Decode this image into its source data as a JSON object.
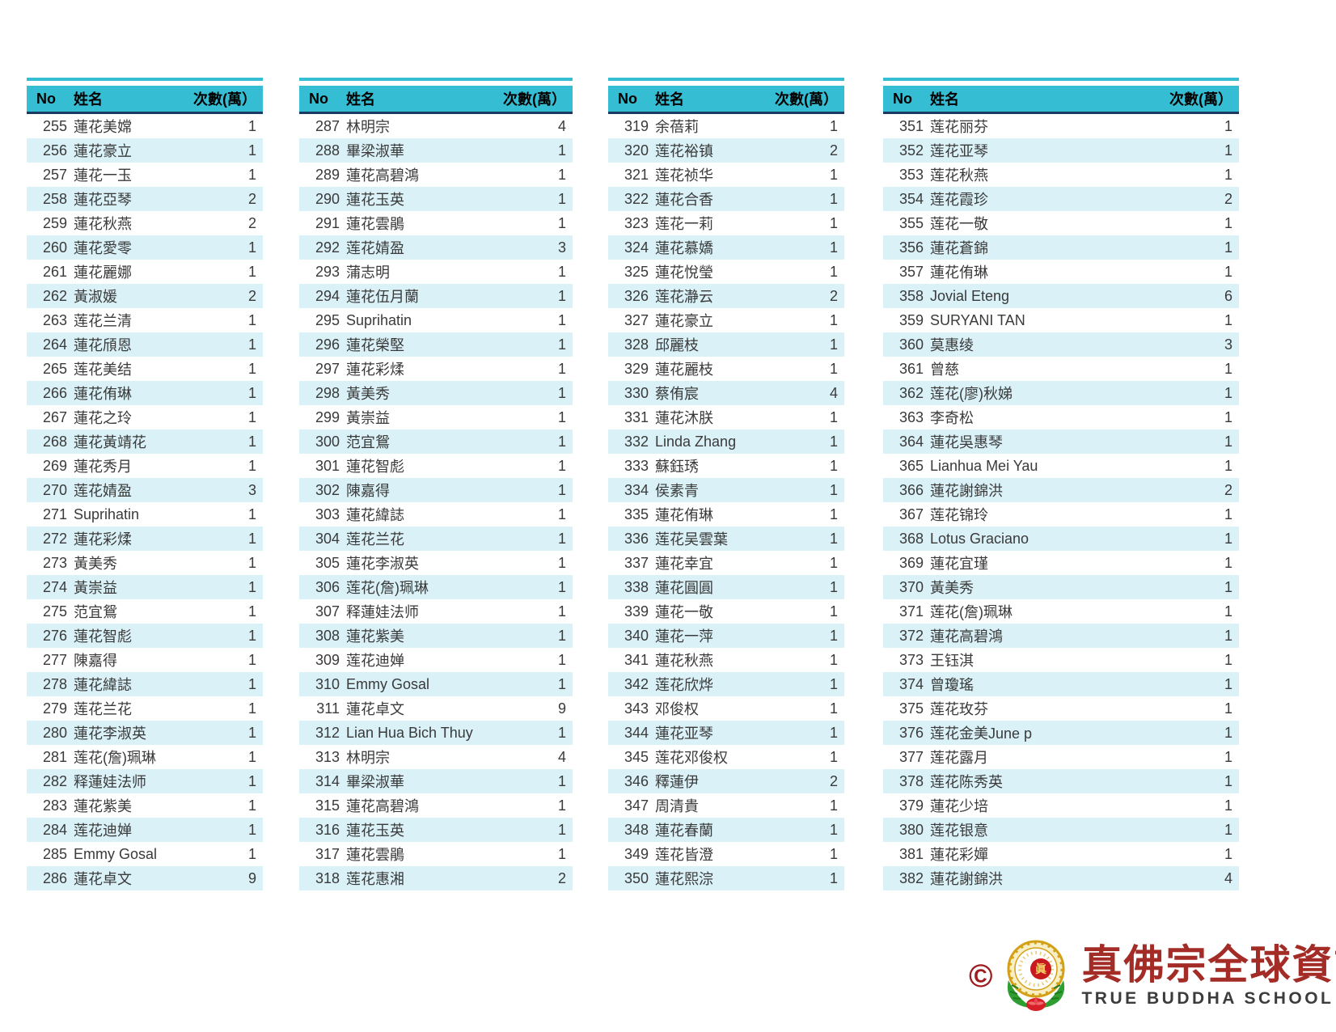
{
  "table_header": {
    "no": "No",
    "name": "姓名",
    "count": "次數(萬）"
  },
  "colors": {
    "header_bg": "#35bed3",
    "header_border": "#1b3a63",
    "row_alt": "#d9f1f7",
    "logo_red": "#a32c26"
  },
  "tables": [
    {
      "rows": [
        {
          "no": 255,
          "name": "蓮花美嫦",
          "count": 1
        },
        {
          "no": 256,
          "name": "蓮花豪立",
          "count": 1
        },
        {
          "no": 257,
          "name": "蓮花一玉",
          "count": 1
        },
        {
          "no": 258,
          "name": "蓮花亞琴",
          "count": 2
        },
        {
          "no": 259,
          "name": "蓮花秋燕",
          "count": 2
        },
        {
          "no": 260,
          "name": "蓮花愛零",
          "count": 1
        },
        {
          "no": 261,
          "name": "蓮花麗娜",
          "count": 1
        },
        {
          "no": 262,
          "name": "黃淑媛",
          "count": 2
        },
        {
          "no": 263,
          "name": "莲花兰清",
          "count": 1
        },
        {
          "no": 264,
          "name": "蓮花頎恩",
          "count": 1
        },
        {
          "no": 265,
          "name": "莲花美结",
          "count": 1
        },
        {
          "no": 266,
          "name": "蓮花侑琳",
          "count": 1
        },
        {
          "no": 267,
          "name": "蓮花之玲",
          "count": 1
        },
        {
          "no": 268,
          "name": "蓮花黃靖花",
          "count": 1
        },
        {
          "no": 269,
          "name": "蓮花秀月",
          "count": 1
        },
        {
          "no": 270,
          "name": "莲花婧盈",
          "count": 3
        },
        {
          "no": 271,
          "name": "Suprihatin",
          "count": 1
        },
        {
          "no": 272,
          "name": "蓮花彩煣",
          "count": 1
        },
        {
          "no": 273,
          "name": "黃美秀",
          "count": 1
        },
        {
          "no": 274,
          "name": "黃崇益",
          "count": 1
        },
        {
          "no": 275,
          "name": "范宜鴛",
          "count": 1
        },
        {
          "no": 276,
          "name": "蓮花智彪",
          "count": 1
        },
        {
          "no": 277,
          "name": "陳嘉得",
          "count": 1
        },
        {
          "no": 278,
          "name": "蓮花緯誌",
          "count": 1
        },
        {
          "no": 279,
          "name": "莲花兰花",
          "count": 1
        },
        {
          "no": 280,
          "name": "蓮花李淑英",
          "count": 1
        },
        {
          "no": 281,
          "name": "莲花(詹)珮琳",
          "count": 1
        },
        {
          "no": 282,
          "name": "释蓮娃法师",
          "count": 1
        },
        {
          "no": 283,
          "name": "蓮花紫美",
          "count": 1
        },
        {
          "no": 284,
          "name": "莲花迪婵",
          "count": 1
        },
        {
          "no": 285,
          "name": "Emmy Gosal",
          "count": 1
        },
        {
          "no": 286,
          "name": "蓮花卓文",
          "count": 9
        }
      ]
    },
    {
      "rows": [
        {
          "no": 287,
          "name": "林明宗",
          "count": 4
        },
        {
          "no": 288,
          "name": "畢梁淑華",
          "count": 1
        },
        {
          "no": 289,
          "name": "蓮花高碧鴻",
          "count": 1
        },
        {
          "no": 290,
          "name": "蓮花玉英",
          "count": 1
        },
        {
          "no": 291,
          "name": "蓮花雲鵑",
          "count": 1
        },
        {
          "no": 292,
          "name": "莲花婧盈",
          "count": 3
        },
        {
          "no": 293,
          "name": "蒲志明",
          "count": 1
        },
        {
          "no": 294,
          "name": "蓮花伍月蘭",
          "count": 1
        },
        {
          "no": 295,
          "name": "Suprihatin",
          "count": 1
        },
        {
          "no": 296,
          "name": "蓮花榮堅",
          "count": 1
        },
        {
          "no": 297,
          "name": "蓮花彩煣",
          "count": 1
        },
        {
          "no": 298,
          "name": "黃美秀",
          "count": 1
        },
        {
          "no": 299,
          "name": "黃崇益",
          "count": 1
        },
        {
          "no": 300,
          "name": "范宜鴛",
          "count": 1
        },
        {
          "no": 301,
          "name": "蓮花智彪",
          "count": 1
        },
        {
          "no": 302,
          "name": "陳嘉得",
          "count": 1
        },
        {
          "no": 303,
          "name": "蓮花緯誌",
          "count": 1
        },
        {
          "no": 304,
          "name": "莲花兰花",
          "count": 1
        },
        {
          "no": 305,
          "name": "蓮花李淑英",
          "count": 1
        },
        {
          "no": 306,
          "name": "莲花(詹)珮琳",
          "count": 1
        },
        {
          "no": 307,
          "name": "释蓮娃法师",
          "count": 1
        },
        {
          "no": 308,
          "name": "蓮花紫美",
          "count": 1
        },
        {
          "no": 309,
          "name": "莲花迪婵",
          "count": 1
        },
        {
          "no": 310,
          "name": "Emmy Gosal",
          "count": 1
        },
        {
          "no": 311,
          "name": "蓮花卓文",
          "count": 9
        },
        {
          "no": 312,
          "name": "Lian Hua Bich Thuy",
          "count": 1
        },
        {
          "no": 313,
          "name": "林明宗",
          "count": 4
        },
        {
          "no": 314,
          "name": "畢梁淑華",
          "count": 1
        },
        {
          "no": 315,
          "name": "蓮花高碧鴻",
          "count": 1
        },
        {
          "no": 316,
          "name": "蓮花玉英",
          "count": 1
        },
        {
          "no": 317,
          "name": "蓮花雲鵑",
          "count": 1
        },
        {
          "no": 318,
          "name": "莲花惠湘",
          "count": 2
        }
      ]
    },
    {
      "rows": [
        {
          "no": 319,
          "name": "余蓓莉",
          "count": 1
        },
        {
          "no": 320,
          "name": "莲花裕镇",
          "count": 2
        },
        {
          "no": 321,
          "name": "莲花祯华",
          "count": 1
        },
        {
          "no": 322,
          "name": "蓮花合香",
          "count": 1
        },
        {
          "no": 323,
          "name": "莲花一莉",
          "count": 1
        },
        {
          "no": 324,
          "name": "蓮花慕嬌",
          "count": 1
        },
        {
          "no": 325,
          "name": "蓮花悅瑩",
          "count": 1
        },
        {
          "no": 326,
          "name": "莲花瀞云",
          "count": 2
        },
        {
          "no": 327,
          "name": "蓮花豪立",
          "count": 1
        },
        {
          "no": 328,
          "name": "邱麗枝",
          "count": 1
        },
        {
          "no": 329,
          "name": "蓮花麗枝",
          "count": 1
        },
        {
          "no": 330,
          "name": "蔡侑宸",
          "count": 4
        },
        {
          "no": 331,
          "name": "蓮花沐朕",
          "count": 1
        },
        {
          "no": 332,
          "name": "Linda Zhang",
          "count": 1
        },
        {
          "no": 333,
          "name": "蘇鈺琇",
          "count": 1
        },
        {
          "no": 334,
          "name": "侯素青",
          "count": 1
        },
        {
          "no": 335,
          "name": "蓮花侑琳",
          "count": 1
        },
        {
          "no": 336,
          "name": "莲花吴雲葉",
          "count": 1
        },
        {
          "no": 337,
          "name": "蓮花幸宜",
          "count": 1
        },
        {
          "no": 338,
          "name": "蓮花圓圓",
          "count": 1
        },
        {
          "no": 339,
          "name": "蓮花一敬",
          "count": 1
        },
        {
          "no": 340,
          "name": "蓮花一萍",
          "count": 1
        },
        {
          "no": 341,
          "name": "蓮花秋燕",
          "count": 1
        },
        {
          "no": 342,
          "name": "莲花欣烨",
          "count": 1
        },
        {
          "no": 343,
          "name": "邓俊权",
          "count": 1
        },
        {
          "no": 344,
          "name": "蓮花亚琴",
          "count": 1
        },
        {
          "no": 345,
          "name": "莲花邓俊权",
          "count": 1
        },
        {
          "no": 346,
          "name": "釋蓮伊",
          "count": 2
        },
        {
          "no": 347,
          "name": "周清貴",
          "count": 1
        },
        {
          "no": 348,
          "name": "蓮花春蘭",
          "count": 1
        },
        {
          "no": 349,
          "name": "莲花皆澄",
          "count": 1
        },
        {
          "no": 350,
          "name": "蓮花熙淙",
          "count": 1
        }
      ]
    },
    {
      "rows": [
        {
          "no": 351,
          "name": "莲花丽芬",
          "count": 1
        },
        {
          "no": 352,
          "name": "莲花亚琴",
          "count": 1
        },
        {
          "no": 353,
          "name": "莲花秋燕",
          "count": 1
        },
        {
          "no": 354,
          "name": "莲花霞珍",
          "count": 2
        },
        {
          "no": 355,
          "name": "莲花一敬",
          "count": 1
        },
        {
          "no": 356,
          "name": "蓮花蒼錦",
          "count": 1
        },
        {
          "no": 357,
          "name": "蓮花侑琳",
          "count": 1
        },
        {
          "no": 358,
          "name": "Jovial Eteng",
          "count": 6
        },
        {
          "no": 359,
          "name": "SURYANI TAN",
          "count": 1
        },
        {
          "no": 360,
          "name": "莫惠绫",
          "count": 3
        },
        {
          "no": 361,
          "name": "曾慈",
          "count": 1
        },
        {
          "no": 362,
          "name": "莲花(廖)秋娣",
          "count": 1
        },
        {
          "no": 363,
          "name": "李奇松",
          "count": 1
        },
        {
          "no": 364,
          "name": "蓮花吳惠琴",
          "count": 1
        },
        {
          "no": 365,
          "name": "Lianhua Mei Yau",
          "count": 1
        },
        {
          "no": 366,
          "name": "蓮花謝錦洪",
          "count": 2
        },
        {
          "no": 367,
          "name": "莲花锦玲",
          "count": 1
        },
        {
          "no": 368,
          "name": "Lotus Graciano",
          "count": 1
        },
        {
          "no": 369,
          "name": "蓮花宜瑾",
          "count": 1
        },
        {
          "no": 370,
          "name": "黃美秀",
          "count": 1
        },
        {
          "no": 371,
          "name": "莲花(詹)珮琳",
          "count": 1
        },
        {
          "no": 372,
          "name": "蓮花高碧鴻",
          "count": 1
        },
        {
          "no": 373,
          "name": "王钰淇",
          "count": 1
        },
        {
          "no": 374,
          "name": "曾瓊瑤",
          "count": 1
        },
        {
          "no": 375,
          "name": "莲花玫芬",
          "count": 1
        },
        {
          "no": 376,
          "name": "莲花金美June p",
          "count": 1
        },
        {
          "no": 377,
          "name": "莲花露月",
          "count": 1
        },
        {
          "no": 378,
          "name": "莲花陈秀英",
          "count": 1
        },
        {
          "no": 379,
          "name": "蓮花少培",
          "count": 1
        },
        {
          "no": 380,
          "name": "莲花银意",
          "count": 1
        },
        {
          "no": 381,
          "name": "蓮花彩嬋",
          "count": 1
        },
        {
          "no": 382,
          "name": "蓮花謝錦洪",
          "count": 4
        }
      ]
    }
  ],
  "footer": {
    "copyright": "©",
    "emblem_char": "眞",
    "site_name_zh": "真佛宗全球資訊網",
    "site_name_en": "TRUE BUDDHA SCHOOL NET"
  }
}
